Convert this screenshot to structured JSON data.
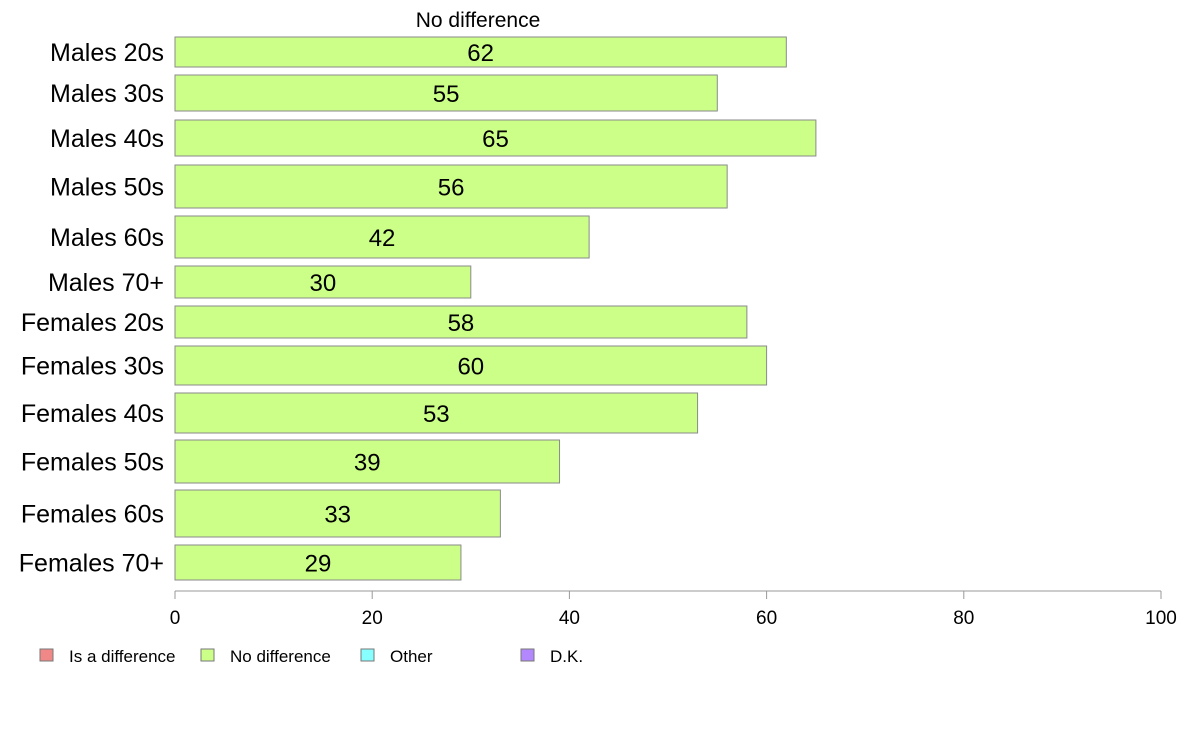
{
  "chart_data": {
    "type": "bar",
    "orientation": "horizontal",
    "stacked": true,
    "categories": [
      "Males 20s",
      "Males 30s",
      "Males 40s",
      "Males 50s",
      "Males 60s",
      "Males 70+",
      "Females 20s",
      "Females 30s",
      "Females 40s",
      "Females 50s",
      "Females 60s",
      "Females 70+"
    ],
    "series": [
      {
        "name": "No difference",
        "color": "#ccff88",
        "values": [
          62,
          55,
          65,
          56,
          42,
          30,
          58,
          60,
          53,
          39,
          33,
          29
        ]
      }
    ],
    "series_title": "No difference",
    "xlim": [
      0,
      100
    ],
    "xticks": [
      0,
      20,
      40,
      60,
      80,
      100
    ],
    "grid": false,
    "legend_position": "bottom-left",
    "legend": [
      {
        "label": "Is a difference",
        "color": "#f08888"
      },
      {
        "label": "No difference",
        "color": "#ccff88"
      },
      {
        "label": "Other",
        "color": "#88ffff"
      },
      {
        "label": "D.K.",
        "color": "#b388ff"
      }
    ]
  }
}
